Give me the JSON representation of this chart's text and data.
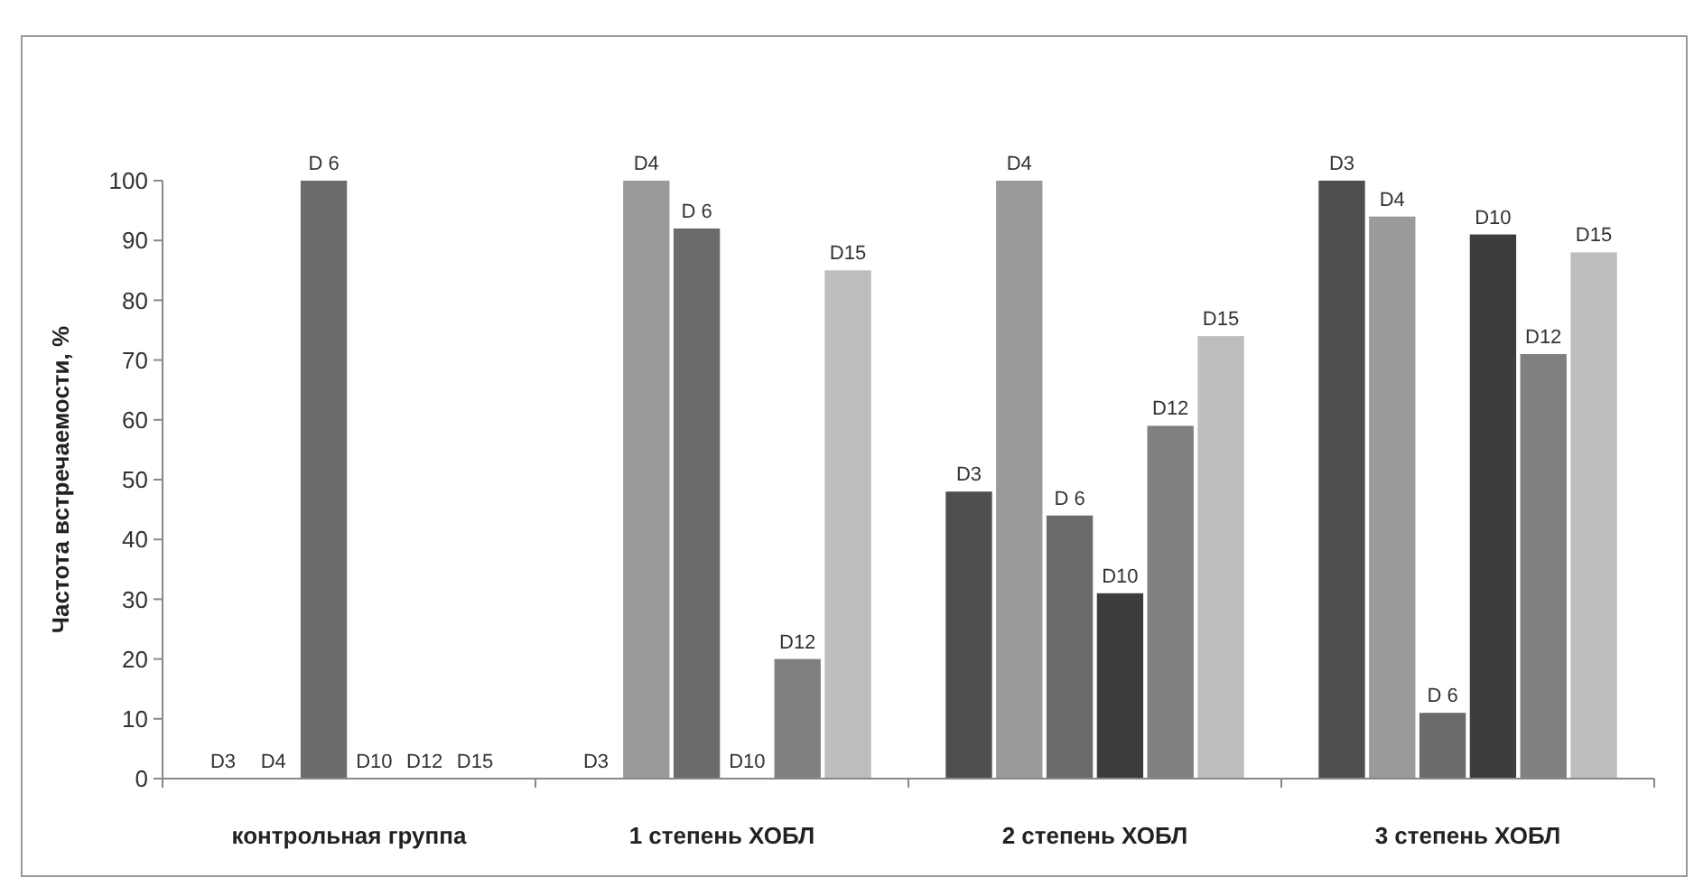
{
  "chart_data": {
    "type": "bar",
    "ylabel": "Частота встречаемости, %",
    "categories": [
      "контрольная группа",
      "1 степень ХОБЛ",
      "2 степень ХОБЛ",
      "3 степень ХОБЛ"
    ],
    "series": [
      {
        "name": "D3",
        "color": "#4f4f4f",
        "values": [
          0,
          0,
          48,
          100
        ]
      },
      {
        "name": "D4",
        "color": "#9a9a9a",
        "values": [
          0,
          100,
          100,
          94
        ]
      },
      {
        "name": "D 6",
        "color": "#6b6b6b",
        "values": [
          100,
          92,
          44,
          11
        ]
      },
      {
        "name": "D10",
        "color": "#3d3d3d",
        "values": [
          0,
          0,
          31,
          91
        ]
      },
      {
        "name": "D12",
        "color": "#808080",
        "values": [
          0,
          20,
          59,
          71
        ]
      },
      {
        "name": "D15",
        "color": "#bdbdbd",
        "values": [
          0,
          85,
          74,
          88
        ]
      }
    ],
    "ylim": [
      0,
      100
    ],
    "yticks": [
      0,
      10,
      20,
      30,
      40,
      50,
      60,
      70,
      80,
      90,
      100
    ],
    "grid": false
  }
}
